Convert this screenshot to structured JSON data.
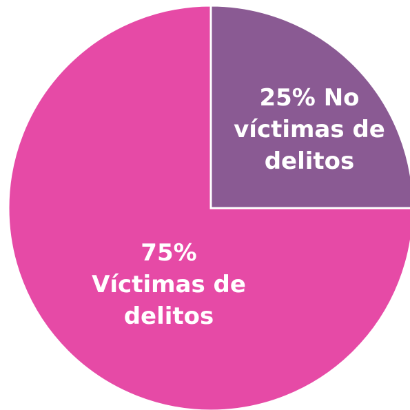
{
  "chart_data": {
    "type": "pie",
    "slices": [
      {
        "value": 25,
        "label_lines": [
          "25% No",
          "víctimas de",
          "delitos"
        ],
        "color": "#8a5a93"
      },
      {
        "value": 75,
        "label_lines": [
          "75%",
          "Víctimas de",
          "delitos"
        ],
        "color": "#e64aa6"
      }
    ],
    "start_angle_deg": 0,
    "direction": "clockwise-from-top",
    "separator_color": "#ffffff"
  }
}
